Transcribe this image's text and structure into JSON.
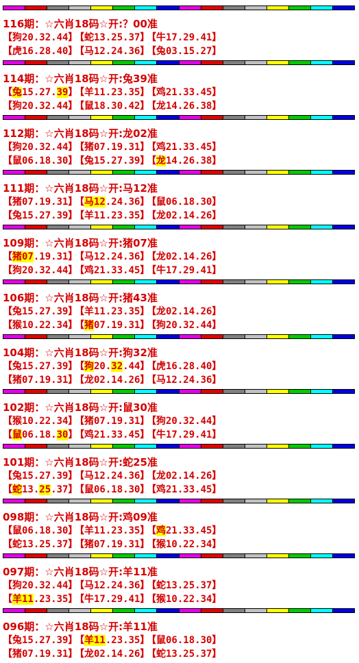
{
  "stripe_colors": [
    "#e600e6",
    "#e60000",
    "#808080",
    "#c0c0c0",
    "#ffff00",
    "#00cc00",
    "#00ffff",
    "#0000e6",
    "#e600e6",
    "#e60000",
    "#808080",
    "#c0c0c0",
    "#ffff00",
    "#00cc00",
    "#00ffff",
    "#0000e6"
  ],
  "blocks": [
    {
      "title": "116期：☆六肖18码☆开:？00准",
      "rows": [
        [
          {
            "parts": [
              {
                "t": "【狗20.32.44】"
              }
            ]
          },
          {
            "parts": [
              {
                "t": "【蛇13.25.37】"
              }
            ]
          },
          {
            "parts": [
              {
                "t": "【牛17.29.41】"
              }
            ]
          }
        ],
        [
          {
            "parts": [
              {
                "t": "【虎16.28.40】"
              }
            ]
          },
          {
            "parts": [
              {
                "t": "【马12.24.36】"
              }
            ]
          },
          {
            "parts": [
              {
                "t": "【兔03.15.27】"
              }
            ]
          }
        ]
      ]
    },
    {
      "title": "114期：☆六肖18码☆开:兔39准",
      "rows": [
        [
          {
            "parts": [
              {
                "t": "【"
              },
              {
                "t": "兔",
                "h": 1
              },
              {
                "t": "15.27."
              },
              {
                "t": "39",
                "h": 1
              },
              {
                "t": "】"
              }
            ]
          },
          {
            "parts": [
              {
                "t": "【羊11.23.35】"
              }
            ]
          },
          {
            "parts": [
              {
                "t": "【鸡21.33.45】"
              }
            ]
          }
        ],
        [
          {
            "parts": [
              {
                "t": "【狗20.32.44】"
              }
            ]
          },
          {
            "parts": [
              {
                "t": "【鼠18.30.42】"
              }
            ]
          },
          {
            "parts": [
              {
                "t": "【龙14.26.38】"
              }
            ]
          }
        ]
      ]
    },
    {
      "title": "112期：☆六肖18码☆开:龙02准",
      "rows": [
        [
          {
            "parts": [
              {
                "t": "【狗20.32.44】"
              }
            ]
          },
          {
            "parts": [
              {
                "t": "【猪07.19.31】"
              }
            ]
          },
          {
            "parts": [
              {
                "t": "【鸡21.33.45】"
              }
            ]
          }
        ],
        [
          {
            "parts": [
              {
                "t": "【鼠06.18.30】"
              }
            ]
          },
          {
            "parts": [
              {
                "t": "【兔15.27.39】"
              }
            ]
          },
          {
            "parts": [
              {
                "t": "【"
              },
              {
                "t": "龙",
                "h": 1
              },
              {
                "t": "14.26.38】"
              }
            ]
          }
        ]
      ]
    },
    {
      "title": "111期：☆六肖18码☆开:马12准",
      "rows": [
        [
          {
            "parts": [
              {
                "t": "【猪07.19.31】"
              }
            ]
          },
          {
            "parts": [
              {
                "t": "【"
              },
              {
                "t": "马12",
                "h": 1
              },
              {
                "t": ".24.36】"
              }
            ]
          },
          {
            "parts": [
              {
                "t": "【鼠06.18.30】"
              }
            ]
          }
        ],
        [
          {
            "parts": [
              {
                "t": "【兔15.27.39】"
              }
            ]
          },
          {
            "parts": [
              {
                "t": "【羊11.23.35】"
              }
            ]
          },
          {
            "parts": [
              {
                "t": "【龙02.14.26】"
              }
            ]
          }
        ]
      ]
    },
    {
      "title": "109期：☆六肖18码☆开:猪07准",
      "rows": [
        [
          {
            "parts": [
              {
                "t": "【"
              },
              {
                "t": "猪07",
                "h": 1
              },
              {
                "t": ".19.31】"
              }
            ]
          },
          {
            "parts": [
              {
                "t": "【马12.24.36】"
              }
            ]
          },
          {
            "parts": [
              {
                "t": "【龙02.14.26】"
              }
            ]
          }
        ],
        [
          {
            "parts": [
              {
                "t": "【狗20.32.44】"
              }
            ]
          },
          {
            "parts": [
              {
                "t": "【鸡21.33.45】"
              }
            ]
          },
          {
            "parts": [
              {
                "t": "【牛17.29.41】"
              }
            ]
          }
        ]
      ]
    },
    {
      "title": "106期：☆六肖18码☆开:猪43准",
      "rows": [
        [
          {
            "parts": [
              {
                "t": "【兔15.27.39】"
              }
            ]
          },
          {
            "parts": [
              {
                "t": "【羊11.23.35】"
              }
            ]
          },
          {
            "parts": [
              {
                "t": "【龙02.14.26】"
              }
            ]
          }
        ],
        [
          {
            "parts": [
              {
                "t": "【猴10.22.34】"
              }
            ]
          },
          {
            "parts": [
              {
                "t": "【"
              },
              {
                "t": "猪",
                "h": 1
              },
              {
                "t": "07.19.31】"
              }
            ]
          },
          {
            "parts": [
              {
                "t": "【狗20.32.44】"
              }
            ]
          }
        ]
      ]
    },
    {
      "title": "104期：☆六肖18码☆开:狗32准",
      "rows": [
        [
          {
            "parts": [
              {
                "t": "【兔15.27.39】"
              }
            ]
          },
          {
            "parts": [
              {
                "t": "【"
              },
              {
                "t": "狗",
                "h": 1
              },
              {
                "t": "20."
              },
              {
                "t": "32",
                "h": 1
              },
              {
                "t": ".44】"
              }
            ]
          },
          {
            "parts": [
              {
                "t": "【虎16.28.40】"
              }
            ]
          }
        ],
        [
          {
            "parts": [
              {
                "t": "【猪07.19.31】"
              }
            ]
          },
          {
            "parts": [
              {
                "t": "【龙02.14.26】"
              }
            ]
          },
          {
            "parts": [
              {
                "t": "【马12.24.36】"
              }
            ]
          }
        ]
      ]
    },
    {
      "title": "102期：☆六肖18码☆开:鼠30准",
      "rows": [
        [
          {
            "parts": [
              {
                "t": "【猴10.22.34】"
              }
            ]
          },
          {
            "parts": [
              {
                "t": "【猪07.19.31】"
              }
            ]
          },
          {
            "parts": [
              {
                "t": "【狗20.32.44】"
              }
            ]
          }
        ],
        [
          {
            "parts": [
              {
                "t": "【"
              },
              {
                "t": "鼠",
                "h": 1
              },
              {
                "t": "06.18."
              },
              {
                "t": "30",
                "h": 1
              },
              {
                "t": "】"
              }
            ]
          },
          {
            "parts": [
              {
                "t": "【鸡21.33.45】"
              }
            ]
          },
          {
            "parts": [
              {
                "t": "【牛17.29.41】"
              }
            ]
          }
        ]
      ]
    },
    {
      "title": "101期：☆六肖18码☆开:蛇25准",
      "rows": [
        [
          {
            "parts": [
              {
                "t": "【兔15.27.39】"
              }
            ]
          },
          {
            "parts": [
              {
                "t": "【马12.24.36】"
              }
            ]
          },
          {
            "parts": [
              {
                "t": "【龙02.14.26】"
              }
            ]
          }
        ],
        [
          {
            "parts": [
              {
                "t": "【"
              },
              {
                "t": "蛇",
                "h": 1
              },
              {
                "t": "13."
              },
              {
                "t": "25",
                "h": 1
              },
              {
                "t": ".37】"
              }
            ]
          },
          {
            "parts": [
              {
                "t": "【鼠06.18.30】"
              }
            ]
          },
          {
            "parts": [
              {
                "t": "【鸡21.33.45】"
              }
            ]
          }
        ]
      ]
    },
    {
      "title": "098期：☆六肖18码☆开:鸡09准",
      "rows": [
        [
          {
            "parts": [
              {
                "t": "【鼠06.18.30】"
              }
            ]
          },
          {
            "parts": [
              {
                "t": "【羊11.23.35】"
              }
            ]
          },
          {
            "parts": [
              {
                "t": "【"
              },
              {
                "t": "鸡",
                "h": 1
              },
              {
                "t": "21.33.45】"
              }
            ]
          }
        ],
        [
          {
            "parts": [
              {
                "t": "【蛇13.25.37】"
              }
            ]
          },
          {
            "parts": [
              {
                "t": "【猪07.19.31】"
              }
            ]
          },
          {
            "parts": [
              {
                "t": "【猴10.22.34】"
              }
            ]
          }
        ]
      ]
    },
    {
      "title": "097期：☆六肖18码☆开:羊11准",
      "rows": [
        [
          {
            "parts": [
              {
                "t": "【狗20.32.44】"
              }
            ]
          },
          {
            "parts": [
              {
                "t": "【马12.24.36】"
              }
            ]
          },
          {
            "parts": [
              {
                "t": "【蛇13.25.37】"
              }
            ]
          }
        ],
        [
          {
            "parts": [
              {
                "t": "【"
              },
              {
                "t": "羊11",
                "h": 1
              },
              {
                "t": ".23.35】"
              }
            ]
          },
          {
            "parts": [
              {
                "t": "【牛17.29.41】"
              }
            ]
          },
          {
            "parts": [
              {
                "t": "【猴10.22.34】"
              }
            ]
          }
        ]
      ]
    },
    {
      "title": "096期：☆六肖18码☆开:羊11准",
      "rows": [
        [
          {
            "parts": [
              {
                "t": "【兔15.27.39】"
              }
            ]
          },
          {
            "parts": [
              {
                "t": "【"
              },
              {
                "t": "羊11",
                "h": 1
              },
              {
                "t": ".23.35】"
              }
            ]
          },
          {
            "parts": [
              {
                "t": "【鼠06.18.30】"
              }
            ]
          }
        ],
        [
          {
            "parts": [
              {
                "t": "【猪07.19.31】"
              }
            ]
          },
          {
            "parts": [
              {
                "t": "【龙02.14.26】"
              }
            ]
          },
          {
            "parts": [
              {
                "t": "【蛇13.25.37】"
              }
            ]
          }
        ]
      ]
    }
  ]
}
